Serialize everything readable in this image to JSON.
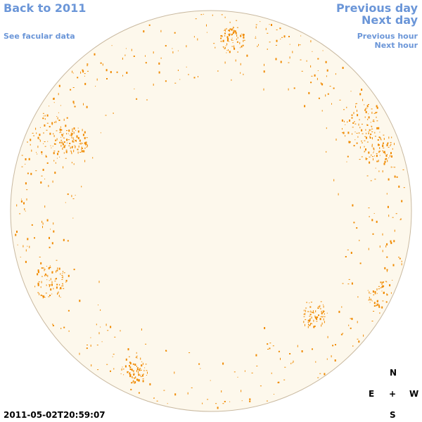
{
  "nav": {
    "back": "Back to 2011",
    "facular": "See facular data",
    "previous_day": "Previous day",
    "next_day": "Next day",
    "previous_hour": "Previous hour",
    "next_hour": "Next hour"
  },
  "compass": {
    "north": "N",
    "east": "E",
    "center": "+",
    "west": "W",
    "south": "S"
  },
  "timestamp": "2011-05-02T20:59:07",
  "colors": {
    "link": "#6b96d8",
    "disk_fill": "#fdf8ec",
    "disk_edge": "#c9b9a0",
    "facula": "#f08a00"
  }
}
